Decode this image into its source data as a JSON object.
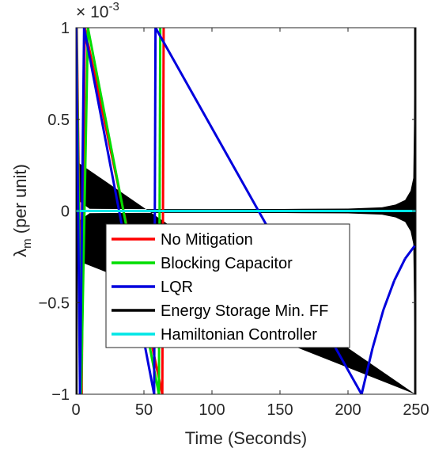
{
  "chart_data": {
    "type": "line",
    "xlabel": "Time (Seconds)",
    "ylabel_main": "λ",
    "ylabel_sub": "m",
    "ylabel_rest": " (per unit)",
    "y_multiplier": "× 10",
    "y_multiplier_exp": "-3",
    "xlim": [
      0,
      250
    ],
    "ylim": [
      -1,
      1
    ],
    "xticks": [
      0,
      50,
      100,
      150,
      200,
      250
    ],
    "yticks": [
      1,
      0.5,
      0,
      -0.5,
      -1
    ],
    "ytick_labels": [
      "1",
      "0.5",
      "0",
      "−0.5",
      "−1"
    ],
    "grid": false,
    "legend_position": "center-left",
    "series": [
      {
        "name": "No Mitigation",
        "color": "#ff0000",
        "x": [
          0.6,
          4.2,
          6.5,
          63.5,
          64.5
        ],
        "y": [
          1,
          -1,
          1,
          -1,
          1
        ]
      },
      {
        "name": "Blocking Capacitor",
        "color": "#00dd00",
        "x": [
          0.4,
          3.8,
          8.8,
          61.0,
          62.0
        ],
        "y": [
          1,
          -1,
          1,
          -1,
          1
        ]
      },
      {
        "name": "LQR",
        "color": "#0000dd",
        "x": [
          0.2,
          3.0,
          6.0,
          57.5,
          58.5,
          210,
          218,
          226,
          234,
          242,
          249
        ],
        "y": [
          1,
          -1,
          1,
          -1,
          1,
          -1.0,
          -0.75,
          -0.54,
          -0.38,
          -0.26,
          -0.19
        ]
      },
      {
        "name": "Energy Storage Min. FF",
        "color": "#000000",
        "envelope_x": [
          0.5,
          3,
          10,
          50,
          100,
          150,
          200,
          225,
          235,
          242,
          246,
          248,
          249.5
        ],
        "envelope_y": [
          0.27,
          0.05,
          0.012,
          0.01,
          0.01,
          0.011,
          0.013,
          0.02,
          0.035,
          0.06,
          0.11,
          0.18,
          1.0
        ]
      },
      {
        "name": "Hamiltonian Controller",
        "color": "#00e6e6",
        "x": [
          0,
          250
        ],
        "y": [
          0,
          0
        ]
      }
    ]
  }
}
